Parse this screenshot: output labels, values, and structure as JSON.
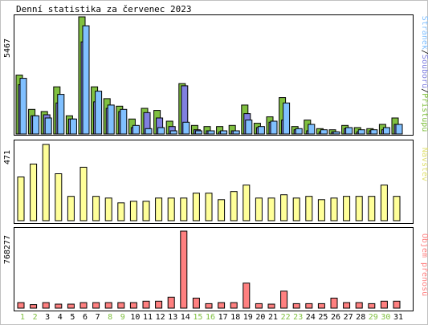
{
  "chart_data": {
    "type": "bar",
    "title": "Denní statistika za červenec 2023",
    "days": [
      "1",
      "2",
      "3",
      "4",
      "5",
      "6",
      "7",
      "8",
      "9",
      "10",
      "11",
      "12",
      "13",
      "14",
      "15",
      "16",
      "17",
      "18",
      "19",
      "20",
      "21",
      "22",
      "23",
      "24",
      "25",
      "26",
      "27",
      "28",
      "29",
      "30",
      "31"
    ],
    "weekend_days": [
      "1",
      "2",
      "8",
      "9",
      "15",
      "16",
      "22",
      "23",
      "29",
      "30"
    ],
    "colors": {
      "pristupu": "#80c040",
      "souboru": "#8080e0",
      "stranek": "#80c0ff",
      "navstev": "#ffff99",
      "objem": "#ff8080",
      "weekend_label": "#80c040",
      "weekday_label": "#000000"
    },
    "panels": [
      {
        "id": "traffic",
        "max_label": "5467",
        "ymax": 5467,
        "legend": {
          "pristupu": "Přístupů",
          "souboru": "Souborů",
          "stranek": "Stránek"
        },
        "separator": "/",
        "series": [
          {
            "key": "pristupu",
            "name": "Přístupů",
            "values": [
              2750,
              1150,
              1050,
              2200,
              850,
              5467,
              2200,
              1650,
              1300,
              700,
              1200,
              1100,
              600,
              2350,
              400,
              350,
              350,
              400,
              1350,
              500,
              800,
              1700,
              350,
              650,
              250,
              200,
              400,
              300,
              250,
              450,
              750
            ]
          },
          {
            "key": "souboru",
            "name": "Souborů",
            "values": [
              2300,
              850,
              900,
              1450,
              700,
              4300,
              1500,
              1200,
              1050,
              300,
              1000,
              750,
              350,
              2250,
              200,
              150,
              100,
              150,
              950,
              300,
              550,
              650,
              200,
              150,
              100,
              100,
              250,
              100,
              150,
              200,
              450
            ]
          },
          {
            "key": "stranek",
            "name": "Stránek",
            "values": [
              2600,
              850,
              750,
              1850,
              700,
              5050,
              2000,
              1350,
              1150,
              400,
              250,
              300,
              150,
              550,
              150,
              150,
              150,
              150,
              650,
              350,
              600,
              1450,
              250,
              450,
              200,
              100,
              300,
              200,
              200,
              300,
              450
            ]
          }
        ]
      },
      {
        "id": "visits",
        "max_label": "471",
        "ymax": 471,
        "label": "Návštěv",
        "series": [
          {
            "key": "navstev",
            "name": "Návštěv",
            "values": [
              270,
              350,
              471,
              290,
              150,
              330,
              150,
              140,
              110,
              120,
              120,
              140,
              140,
              140,
              170,
              170,
              130,
              180,
              220,
              140,
              140,
              160,
              140,
              150,
              130,
              140,
              150,
              150,
              150,
              220,
              150
            ]
          }
        ]
      },
      {
        "id": "volume",
        "max_label": "768277",
        "ymax": 768277,
        "label": "Objem přenosů",
        "series": [
          {
            "key": "objem",
            "name": "Objem přenosů",
            "values": [
              55000,
              35000,
              55000,
              40000,
              40000,
              55000,
              55000,
              55000,
              55000,
              55000,
              70000,
              70000,
              110000,
              768277,
              100000,
              45000,
              55000,
              55000,
              250000,
              45000,
              40000,
              170000,
              45000,
              45000,
              45000,
              100000,
              55000,
              55000,
              45000,
              70000,
              70000
            ]
          }
        ]
      }
    ]
  }
}
